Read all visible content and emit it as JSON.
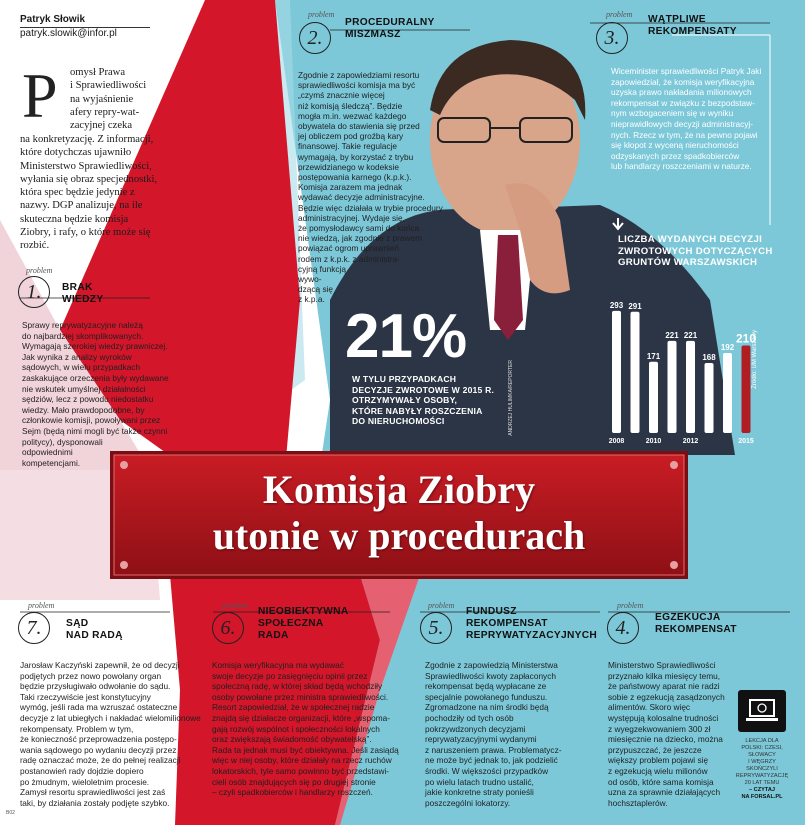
{
  "author": {
    "name": "Patryk Słowik",
    "email": "patryk.slowik@infor.pl"
  },
  "lead": {
    "dropcap": "P",
    "lines": [
      "omysł Prawa",
      "i Sprawiedliwości",
      "na wyjaśnienie",
      "afery repry-wat-",
      "zacyjnej czeka"
    ],
    "rest": "na konkretyzację. Z informacji, które dotychczas ujawniło Ministerstwo Sprawiedliwości, wyłania się obraz specjednostki, która spec będzie jedynie z nazwy. DGP analizuje, na ile skuteczna będzie komisja Ziobry, i rafy, o które może się rozbić."
  },
  "problem_tag": "problem",
  "problems": [
    {
      "num": "1.",
      "title": [
        "BRAK",
        "WIEDZY"
      ],
      "body": [
        "Sprawy reprywatyzacyjne należą",
        "do najbardziej skomplikowanych.",
        "Wymagają szerokiej wiedzy prawniczej.",
        "Jak wynika z analizy wyroków",
        "sądowych, w wielu przypadkach",
        "zaskakujące orzeczenia były wydawane",
        "nie wskutek umyślnej działalności",
        "sędziów, lecz z powodu niedostatku",
        "wiedzy. Mało prawdopodobne, by",
        "członkowie komisji, powoływani przez",
        "Sejm (będą nimi mogli być także czynni",
        "politycy), dysponowali",
        "odpowiednimi",
        "kompetencjami."
      ]
    },
    {
      "num": "2.",
      "title": [
        "PROCEDURALNY",
        "MISZMASZ"
      ],
      "body": [
        "Zgodnie z zapowiedziami resortu",
        "sprawiedliwości komisja ma być",
        "„czymś znacznie więcej",
        "niż komisją śledczą”. Będzie",
        "mogła m.in. wezwać każdego",
        "obywatela do stawienia się przed",
        "jej obliczem pod groźbą kary",
        "finansowej. Takie regulacje",
        "wymagają, by korzystać z trybu",
        "przewidzianego w kodeksie",
        "postępowania karnego (k.p.k.).",
        "Komisja zarazem ma jednak",
        "wydawać decyzje administracyjne.",
        "Będzie więc działała w trybie procedury",
        "administracyjnej. Wydaje się,",
        "że pomysłodawcy sami do końca",
        "nie wiedzą, jak zgodnie z prawem",
        "powiązać ogrom uprawnień",
        "rodem z k.p.k. z administra-",
        "cyjną funkcją",
        "wywo-",
        "dzącą się",
        "z k.p.a."
      ]
    },
    {
      "num": "3.",
      "title": [
        "WĄTPLIWE",
        "REKOMPENSATY"
      ],
      "body": [
        "Wiceminister sprawiedliwości Patryk Jaki",
        "zapowiedział, że komisja weryfikacyjna",
        "uzyska prawo nakładania milionowych",
        "rekompensat w związku z bezpodstaw-",
        "nym wzbogaceniem się w wyniku",
        "nieprawidłowych decyzji administracyj-",
        "nych. Rzecz w tym, że na pewno pojawi",
        "się kłopot z wyceną nieruchomości",
        "odzyskanych przez spadkobierców",
        "lub handlarzy roszczeniami w naturze."
      ]
    },
    {
      "num": "4.",
      "title": [
        "EGZEKUCJA",
        "REKOMPENSAT"
      ],
      "body": [
        "Ministerstwo Sprawiedliwości",
        "przyznało kilka miesięcy temu,",
        "że państwowy aparat nie radzi",
        "sobie z egzekucją zasądzonych",
        "alimentów. Skoro więc",
        "występują kolosalne trudności",
        "z wyegzekwowaniem 300 zł",
        "miesięcznie na dziecko, można",
        "przypuszczać, że jeszcze",
        "większy problem pojawi się",
        "z egzekucją wielu milionów",
        "od osób, które sama komisja",
        "uzna za sprawnie działających",
        "hochsztaplerów."
      ]
    },
    {
      "num": "5.",
      "title": [
        "FUNDUSZ",
        "REKOMPENSAT",
        "REPRYWATYZACYJNYCH"
      ],
      "body": [
        "Zgodnie z zapowiedzią Ministerstwa",
        "Sprawiedliwości kwoty zapłaconych",
        "rekompensat będą wypłacane ze",
        "specjalnie powołanego funduszu.",
        "Zgromadzone na nim środki będą",
        "pochodziły od tych osób",
        "pokrzywdzonych decyzjami",
        "reprywatyzacyjnymi wydanymi",
        "z naruszeniem prawa. Problematycz-",
        "ne może być jednak to, jak podzielić",
        "środki. W większości przypadków",
        "po wielu latach trudno ustalić,",
        "jakie konkretne straty ponieśli",
        "poszczególni lokatorzy."
      ]
    },
    {
      "num": "6.",
      "title": [
        "NIEOBIEKTYWNA",
        "SPOŁECZNA",
        "RADA"
      ],
      "body": [
        "Komisja weryfikacyjna ma wydawać",
        "swoje decyzje po zasięgnięciu opinii przez",
        "społeczną radę, w której skład będą wchodziły",
        "osoby powołane przez ministra sprawiedliwości.",
        "Resort zapowiedział, że w społecznej radzie",
        "znajdą się działacze organizacji, które „wspoma-",
        "gają rozwój wspólnot i społeczności lokalnych",
        "oraz zwiększają świadomość obywatelską”.",
        "Rada ta jednak musi być obiektywna. Jeśli zasiądą",
        "więc w niej osoby, które działały na rzecz ruchów",
        "lokatorskich, tyle samo powinno być przedstawi-",
        "cieli osób znajdujących się po drugiej stronie",
        "– czyli spadkobierców i handlarzy roszczeń."
      ]
    },
    {
      "num": "7.",
      "title": [
        "SĄD",
        "NAD RADĄ"
      ],
      "body": [
        "Jarosław Kaczyński zapewnił, że od decyzji",
        "podjętych przez nowo powołany organ",
        "będzie przysługiwało odwołanie do sądu.",
        "Taki rzeczywiście jest konstytucyjny",
        "wymóg, jeśli rada ma wzruszać ostateczne",
        "decyzje z lat ubiegłych i nakładać wielomilionowe",
        "rekompensaty. Problem w tym,",
        "że konieczność przeprowadzenia postępo-",
        "wania sądowego po wydaniu decyzji przez",
        "radę oznaczać może, że do pełnej realizacji",
        "postanowień rady dojdzie dopiero",
        "po żmudnym, wieloletnim procesie.",
        "Zamysł resortu sprawiedliwości jest zaś",
        "taki, by działania zostały podjęte szybko."
      ]
    }
  ],
  "stat": {
    "value": "21%",
    "text": [
      "W TYLU PRZYPADKACH",
      "DECYZJE ZWROTOWE W 2015 R.",
      "OTRZYMYWAŁY OSOBY,",
      "KTÓRE NABYŁY ROSZCZENIA",
      "DO NIERUCHOMOŚCI"
    ]
  },
  "chart_data": {
    "type": "bar",
    "title": "LICZBA WYDANYCH DECYZJI ZWROTOWYCH DOTYCZĄCYCH GRUNTÓW WARSZAWSKICH",
    "categories": [
      "2008",
      "2009",
      "2010",
      "2011",
      "2012",
      "2013",
      "2014",
      "2015"
    ],
    "values": [
      293,
      291,
      171,
      221,
      221,
      168,
      192,
      210
    ],
    "x_tick_labels": [
      "2008",
      "2010",
      "2012",
      "2015"
    ],
    "source": "Źródło: UM Warszawy",
    "colors": {
      "bar": "#ffffff",
      "highlight": "#b01d22"
    }
  },
  "photo_credit": "ANDRZEJ HULIMKA/REPORTER",
  "headline": [
    "Komisja Ziobry",
    "utonie w procedurach"
  ],
  "promo": {
    "lines": [
      "LEKCJA DLA",
      "POLSKI: CZESI,",
      "SŁOWACY",
      "I WĘGRZY",
      "SKOŃCZYLI",
      "REPRYWATYZACJĘ",
      "20 LAT TEMU"
    ],
    "cta": [
      "– CZYTAJ",
      "NA FORSAL.PL"
    ]
  },
  "page_mark": "B02",
  "colors": {
    "red": "#d4162b",
    "cyan": "#6fc3d6",
    "banner": "#b5161d",
    "pink": "#e8b9c2"
  }
}
